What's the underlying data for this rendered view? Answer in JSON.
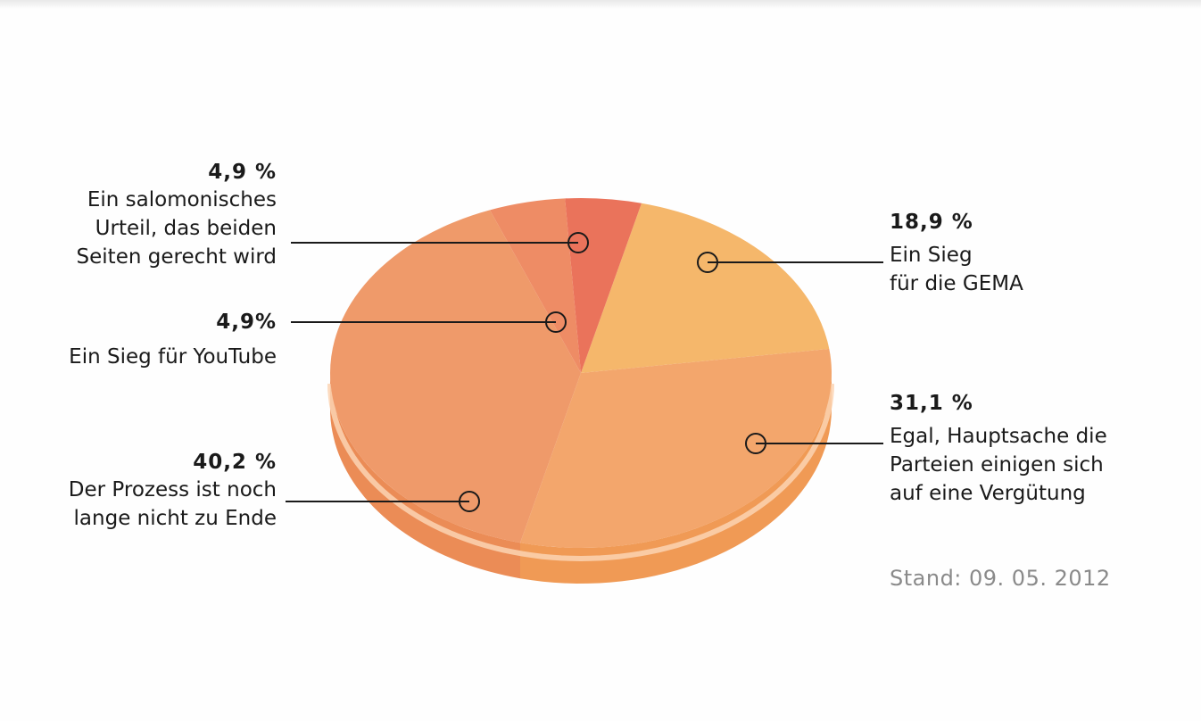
{
  "chart_data": {
    "type": "pie",
    "style": "3d",
    "slices": [
      {
        "label": "Ein Sieg für die GEMA",
        "pct_text": "18,9 %",
        "desc_lines": [
          "Ein Sieg",
          "für die GEMA"
        ],
        "value": 18.9,
        "color": "#f5b76b",
        "side": "#eea052"
      },
      {
        "label": "Egal, Hauptsache die Parteien einigen sich auf eine Vergütung",
        "pct_text": "31,1 %",
        "desc_lines": [
          "Egal, Hauptsache die",
          "Parteien einigen sich",
          "auf eine Vergütung"
        ],
        "value": 31.1,
        "color": "#f3a66c",
        "side": "#f09a55"
      },
      {
        "label": "Der Prozess ist noch lange nicht zu Ende",
        "pct_text": "40,2 %",
        "desc_lines": [
          "Der Prozess ist noch",
          "lange nicht zu Ende"
        ],
        "value": 40.2,
        "color": "#ef9a6a",
        "side": "#eb8c56"
      },
      {
        "label": "Ein Sieg für YouTube",
        "pct_text": "4,9%",
        "desc_lines": [
          "Ein Sieg für YouTube"
        ],
        "value": 4.9,
        "color": "#ee8c65",
        "side": "#e98055"
      },
      {
        "label": "Ein salomonisches Urteil, das beiden Seiten gerecht wird",
        "pct_text": "4,9 %",
        "desc_lines": [
          "Ein salomonisches",
          "Urteil, das beiden",
          "Seiten gerecht wird"
        ],
        "value": 4.9,
        "color": "#ea735b",
        "side": "#e5684f"
      }
    ]
  },
  "note": "Stand: 09. 05. 2012"
}
